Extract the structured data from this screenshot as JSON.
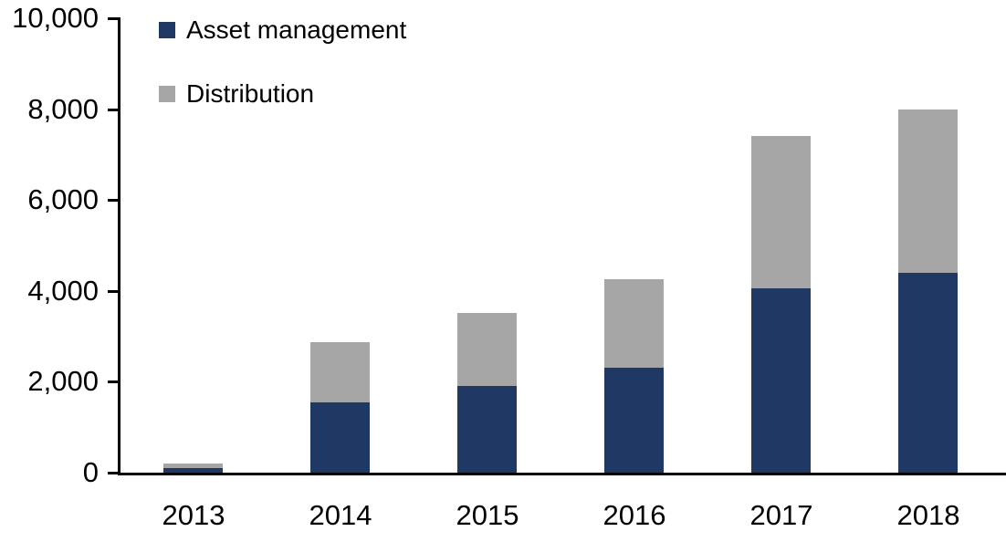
{
  "chart_data": {
    "type": "bar",
    "stacked": true,
    "title": "",
    "xlabel": "",
    "ylabel": "",
    "categories": [
      "2013",
      "2014",
      "2015",
      "2016",
      "2017",
      "2018"
    ],
    "series": [
      {
        "name": "Asset management",
        "color": "#1F3864",
        "values": [
          100,
          1550,
          1900,
          2300,
          4050,
          4400
        ]
      },
      {
        "name": "Distribution",
        "color": "#A6A6A6",
        "values": [
          100,
          1320,
          1600,
          1950,
          3350,
          3600
        ]
      }
    ],
    "totals": [
      200,
      2870,
      3500,
      4250,
      7400,
      8000
    ],
    "ylim": [
      0,
      10000
    ],
    "yticks": {
      "values": [
        0,
        2000,
        4000,
        6000,
        8000,
        10000
      ],
      "labels": [
        "0",
        "2,000",
        "4,000",
        "6,000",
        "8,000",
        "10,000"
      ]
    },
    "grid": false,
    "legend_position": "inside-top-left",
    "axis_color": "#000000",
    "text_color": "#000000",
    "background_color": "#ffffff"
  }
}
